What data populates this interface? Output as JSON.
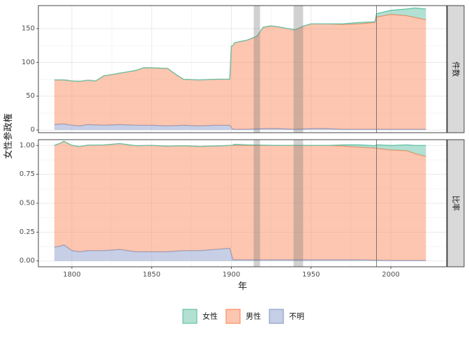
{
  "chart_data": {
    "type": "area",
    "ylabel": "女性参政権",
    "xlabel": "年",
    "x_ticks": [
      1800,
      1850,
      1900,
      1950,
      2000
    ],
    "xlim": [
      1779,
      2035
    ],
    "colors": {
      "女性": "#66c2a5",
      "男性": "#fc8d62",
      "不明": "#8da0cb"
    },
    "legend": {
      "position": "bottom",
      "items": [
        "女性",
        "男性",
        "不明"
      ]
    },
    "shaded_periods": [
      [
        1914,
        1918
      ],
      [
        1939,
        1945
      ]
    ],
    "vline_year": 1991,
    "panels": [
      {
        "strip_label": "件数",
        "ylim": [
          -4,
          184
        ],
        "y_ticks": [
          0,
          50,
          100,
          150
        ],
        "y_tick_labels": [
          "0",
          "50",
          "100",
          "150"
        ],
        "series": [
          {
            "name": "不明",
            "points": [
              [
                1789,
                8
              ],
              [
                1795,
                9
              ],
              [
                1800,
                7
              ],
              [
                1805,
                6
              ],
              [
                1810,
                8
              ],
              [
                1820,
                7
              ],
              [
                1830,
                8
              ],
              [
                1840,
                7
              ],
              [
                1850,
                7
              ],
              [
                1860,
                6
              ],
              [
                1870,
                7
              ],
              [
                1880,
                6
              ],
              [
                1890,
                7
              ],
              [
                1899,
                7
              ],
              [
                1901,
                1
              ],
              [
                1910,
                1
              ],
              [
                1920,
                2
              ],
              [
                1930,
                2
              ],
              [
                1940,
                1
              ],
              [
                1950,
                2
              ],
              [
                1960,
                2
              ],
              [
                1970,
                1
              ],
              [
                1980,
                1
              ],
              [
                1990,
                1
              ],
              [
                2000,
                1
              ],
              [
                2010,
                1
              ],
              [
                2022,
                1
              ]
            ]
          },
          {
            "name": "男性",
            "points": [
              [
                1789,
                66
              ],
              [
                1795,
                65
              ],
              [
                1805,
                66
              ],
              [
                1815,
                65
              ],
              [
                1820,
                73
              ],
              [
                1830,
                76
              ],
              [
                1840,
                81
              ],
              [
                1845,
                85
              ],
              [
                1860,
                85
              ],
              [
                1865,
                76
              ],
              [
                1870,
                68
              ],
              [
                1885,
                68
              ],
              [
                1899,
                68
              ],
              [
                1900,
                120
              ],
              [
                1902,
                128
              ],
              [
                1910,
                132
              ],
              [
                1916,
                137
              ],
              [
                1920,
                150
              ],
              [
                1925,
                152
              ],
              [
                1940,
                147
              ],
              [
                1945,
                152
              ],
              [
                1950,
                155
              ],
              [
                1970,
                155
              ],
              [
                1980,
                156
              ],
              [
                1990,
                158
              ],
              [
                1991,
                166
              ],
              [
                2000,
                170
              ],
              [
                2010,
                168
              ],
              [
                2022,
                162
              ]
            ]
          },
          {
            "name": "女性",
            "points": [
              [
                1789,
                0
              ],
              [
                1900,
                0
              ],
              [
                1910,
                0
              ],
              [
                1930,
                0
              ],
              [
                1960,
                0
              ],
              [
                1970,
                1
              ],
              [
                1980,
                2
              ],
              [
                1990,
                1
              ],
              [
                1991,
                5
              ],
              [
                2000,
                6
              ],
              [
                2010,
                10
              ],
              [
                2015,
                14
              ],
              [
                2022,
                16
              ]
            ]
          }
        ]
      },
      {
        "strip_label": "比率",
        "ylim": [
          -0.05,
          1.05
        ],
        "y_ticks": [
          0,
          0.25,
          0.5,
          0.75,
          1.0
        ],
        "y_tick_labels": [
          "0.00",
          "0.25",
          "0.50",
          "0.75",
          "1.00"
        ],
        "series": [
          {
            "name": "不明",
            "points": [
              [
                1789,
                0.12
              ],
              [
                1793,
                0.13
              ],
              [
                1795,
                0.14
              ],
              [
                1800,
                0.09
              ],
              [
                1805,
                0.08
              ],
              [
                1810,
                0.09
              ],
              [
                1820,
                0.09
              ],
              [
                1830,
                0.1
              ],
              [
                1840,
                0.08
              ],
              [
                1850,
                0.08
              ],
              [
                1860,
                0.08
              ],
              [
                1870,
                0.09
              ],
              [
                1880,
                0.09
              ],
              [
                1890,
                0.1
              ],
              [
                1899,
                0.11
              ],
              [
                1901,
                0.01
              ],
              [
                1910,
                0.01
              ],
              [
                1920,
                0.01
              ],
              [
                1940,
                0.01
              ],
              [
                1960,
                0.01
              ],
              [
                1980,
                0.01
              ],
              [
                2000,
                0.005
              ],
              [
                2022,
                0.005
              ]
            ]
          },
          {
            "name": "男性",
            "points": [
              [
                1789,
                0.88
              ],
              [
                1800,
                0.91
              ],
              [
                1850,
                0.92
              ],
              [
                1899,
                0.89
              ],
              [
                1901,
                0.99
              ],
              [
                1920,
                0.99
              ],
              [
                1940,
                0.99
              ],
              [
                1960,
                0.99
              ],
              [
                1970,
                0.985
              ],
              [
                1980,
                0.975
              ],
              [
                1990,
                0.97
              ],
              [
                2000,
                0.955
              ],
              [
                2010,
                0.95
              ],
              [
                2015,
                0.925
              ],
              [
                2022,
                0.9
              ]
            ]
          },
          {
            "name": "女性",
            "points": [
              [
                1789,
                0
              ],
              [
                1900,
                0
              ],
              [
                1902,
                0.01
              ],
              [
                1910,
                0.005
              ],
              [
                1930,
                0
              ],
              [
                1960,
                0
              ],
              [
                1970,
                0.01
              ],
              [
                1980,
                0.02
              ],
              [
                1990,
                0.02
              ],
              [
                1991,
                0.03
              ],
              [
                2000,
                0.04
              ],
              [
                2010,
                0.05
              ],
              [
                2015,
                0.07
              ],
              [
                2022,
                0.095
              ]
            ]
          }
        ]
      }
    ]
  }
}
